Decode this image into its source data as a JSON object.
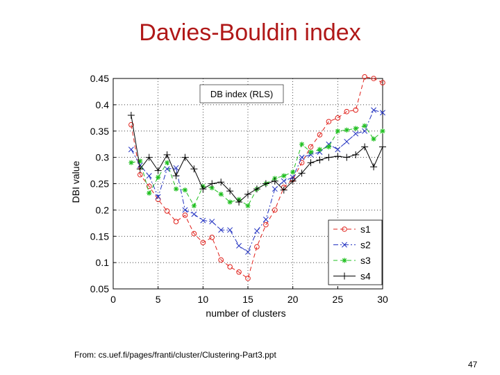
{
  "slide": {
    "title": "Davies-Bouldin index",
    "footnote": "From: cs.uef.fi/pages/franti/cluster/Clustering-Part3.ppt",
    "page_number": "47"
  },
  "chart_data": {
    "type": "line",
    "title": "DB index (RLS)",
    "xlabel": "number of clusters",
    "ylabel": "DBI value",
    "xlim": [
      0,
      30
    ],
    "ylim": [
      0.05,
      0.45
    ],
    "xticks": [
      0,
      5,
      10,
      15,
      20,
      25,
      30
    ],
    "xtick_labels": [
      "0",
      "5",
      "10",
      "15",
      "20",
      "25",
      "30"
    ],
    "yticks": [
      0.05,
      0.1,
      0.15,
      0.2,
      0.25,
      0.3,
      0.35,
      0.4,
      0.45
    ],
    "ytick_labels": [
      "0.05",
      "0.1",
      "0.15",
      "0.2",
      "0.25",
      "0.3",
      "0.35",
      "0.4",
      "0.45"
    ],
    "grid": true,
    "legend_position": "bottom-right",
    "x": [
      2,
      3,
      4,
      5,
      6,
      7,
      8,
      9,
      10,
      11,
      12,
      13,
      14,
      15,
      16,
      17,
      18,
      19,
      20,
      21,
      22,
      23,
      24,
      25,
      26,
      27,
      28,
      29,
      30
    ],
    "series": [
      {
        "name": "s1",
        "color": "#e0201a",
        "marker": "circle",
        "dash": "dashed",
        "values": [
          0.362,
          0.267,
          0.245,
          0.22,
          0.198,
          0.178,
          0.19,
          0.155,
          0.138,
          0.148,
          0.105,
          0.092,
          0.082,
          0.07,
          0.13,
          0.172,
          0.2,
          0.243,
          0.258,
          0.29,
          0.32,
          0.343,
          0.368,
          0.375,
          0.387,
          0.39,
          0.453,
          0.45,
          0.442
        ]
      },
      {
        "name": "s2",
        "color": "#2030c0",
        "marker": "x",
        "dash": "dashdot",
        "values": [
          0.315,
          0.285,
          0.265,
          0.225,
          0.278,
          0.28,
          0.2,
          0.192,
          0.18,
          0.178,
          0.162,
          0.162,
          0.132,
          0.12,
          0.16,
          0.182,
          0.24,
          0.255,
          0.262,
          0.3,
          0.305,
          0.31,
          0.325,
          0.315,
          0.33,
          0.345,
          0.35,
          0.39,
          0.385
        ]
      },
      {
        "name": "s3",
        "color": "#22c022",
        "marker": "star",
        "dash": "dashed",
        "values": [
          0.29,
          0.293,
          0.232,
          0.262,
          0.29,
          0.24,
          0.238,
          0.208,
          0.245,
          0.242,
          0.23,
          0.215,
          0.22,
          0.208,
          0.24,
          0.25,
          0.26,
          0.265,
          0.272,
          0.325,
          0.31,
          0.315,
          0.32,
          0.35,
          0.352,
          0.355,
          0.36,
          0.335,
          0.35
        ]
      },
      {
        "name": "s4",
        "color": "#000000",
        "marker": "plus",
        "dash": "solid",
        "values": [
          0.38,
          0.278,
          0.3,
          0.275,
          0.305,
          0.265,
          0.3,
          0.278,
          0.24,
          0.25,
          0.253,
          0.236,
          0.215,
          0.23,
          0.24,
          0.25,
          0.255,
          0.238,
          0.255,
          0.27,
          0.29,
          0.295,
          0.3,
          0.302,
          0.3,
          0.305,
          0.32,
          0.282,
          0.32
        ]
      }
    ]
  }
}
